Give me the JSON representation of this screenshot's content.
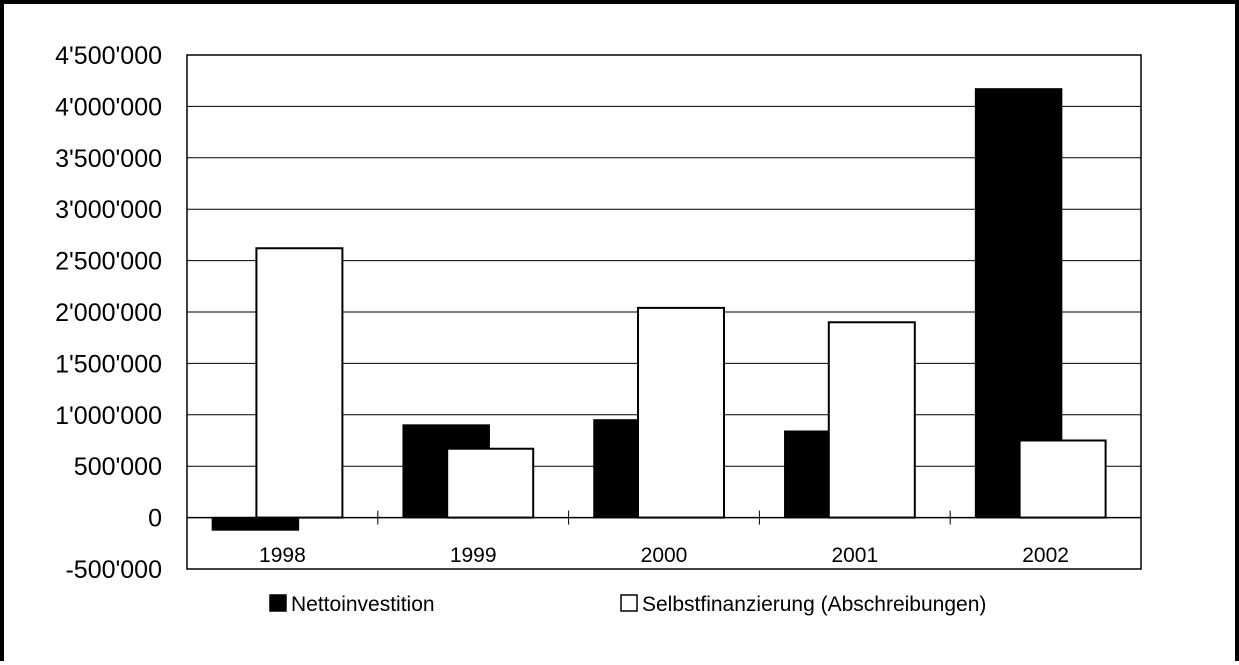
{
  "chart_data": {
    "type": "bar",
    "title": "",
    "xlabel": "",
    "ylabel": "",
    "categories": [
      "1998",
      "1999",
      "2000",
      "2001",
      "2002"
    ],
    "series": [
      {
        "name": "Nettoinvestition",
        "color": "#000000",
        "values": [
          -120000,
          900000,
          950000,
          840000,
          4170000
        ]
      },
      {
        "name": "Selbstfinanzierung  (Abschreibungen)",
        "color": "#ffffff",
        "values": [
          2620000,
          670000,
          2040000,
          1900000,
          750000
        ]
      }
    ],
    "ylim": [
      -500000,
      4500000
    ],
    "ytick_step": 500000,
    "ytick_labels": [
      "-500'000",
      "0",
      "500'000",
      "1'000'000",
      "1'500'000",
      "2'000'000",
      "2'500'000",
      "3'000'000",
      "3'500'000",
      "4'000'000",
      "4'500'000"
    ],
    "grid": true,
    "legend": "bottom"
  }
}
